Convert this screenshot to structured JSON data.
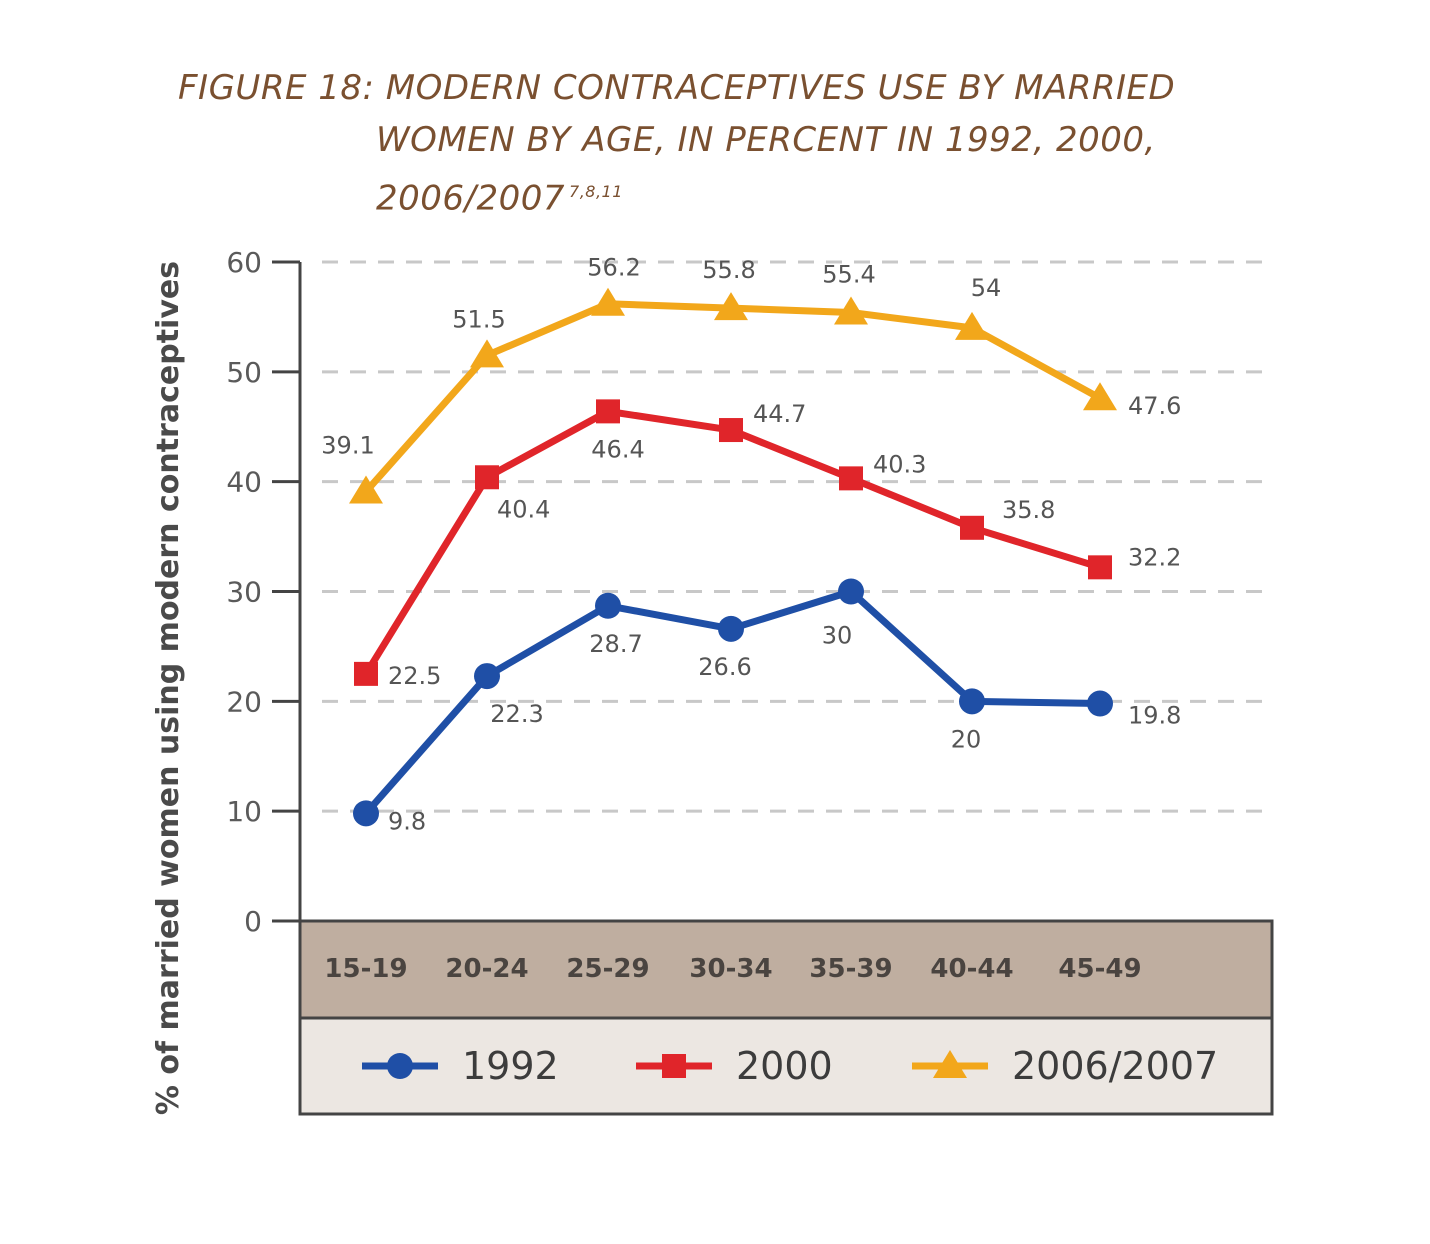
{
  "figure": {
    "title_line1": "FIGURE 18: MODERN CONTRACEPTIVES USE BY MARRIED",
    "title_line2": "WOMEN BY AGE, IN PERCENT IN 1992, 2000,",
    "title_line3": "2006/2007",
    "title_refs": "7,8,11"
  },
  "chart_data": {
    "type": "line",
    "title": "MODERN CONTRACEPTIVES USE BY MARRIED WOMEN BY AGE, IN PERCENT IN 1992, 2000, 2006/2007",
    "ylabel": "% of married women using modern contraceptives",
    "xlabel": "",
    "ylim": [
      0,
      60
    ],
    "yticks": [
      0,
      10,
      20,
      30,
      40,
      50,
      60
    ],
    "grid": "horizontal dashed",
    "legend_position": "bottom",
    "categories": [
      "15-19",
      "20-24",
      "25-29",
      "30-34",
      "35-39",
      "40-44",
      "45-49"
    ],
    "series": [
      {
        "name": "1992",
        "marker": "circle",
        "color": "#1f4fa6",
        "values": [
          9.8,
          22.3,
          28.7,
          26.6,
          30,
          20,
          19.8
        ],
        "labels": [
          "9.8",
          "22.3",
          "28.7",
          "26.6",
          "30",
          "20",
          "19.8"
        ]
      },
      {
        "name": "2000",
        "marker": "square",
        "color": "#e0252a",
        "values": [
          22.5,
          40.4,
          46.4,
          44.7,
          40.3,
          35.8,
          32.2
        ],
        "labels": [
          "22.5",
          "40.4",
          "46.4",
          "44.7",
          "40.3",
          "35.8",
          "32.2"
        ]
      },
      {
        "name": "2006/2007",
        "marker": "triangle",
        "color": "#f2a71b",
        "values": [
          39.1,
          51.5,
          56.2,
          55.8,
          55.4,
          54,
          47.6
        ],
        "labels": [
          "39.1",
          "51.5",
          "56.2",
          "55.8",
          "55.4",
          "54",
          "47.6"
        ]
      }
    ]
  }
}
